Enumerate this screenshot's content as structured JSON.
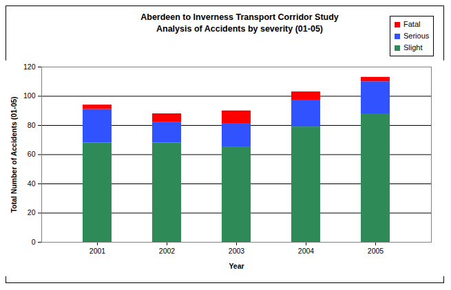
{
  "chart_data": {
    "type": "bar",
    "stacked": true,
    "title": "Aberdeen to Inverness Transport Corridor Study",
    "subtitle": "Analysis of Accidents by severity (01-05)",
    "x_label": "Year",
    "y_label": "Total Number of Accidents (01-05)",
    "categories": [
      "2001",
      "2002",
      "2003",
      "2004",
      "2005"
    ],
    "series": [
      {
        "name": "Slight",
        "color": "#2e8b57",
        "values": [
          68,
          68,
          65,
          79,
          88
        ]
      },
      {
        "name": "Serious",
        "color": "#3152ff",
        "values": [
          23,
          14,
          16,
          18,
          22
        ]
      },
      {
        "name": "Fatal",
        "color": "#ff0000",
        "values": [
          3,
          6,
          9,
          6,
          3
        ]
      }
    ],
    "ylim": [
      0,
      120
    ],
    "yticks": [
      0,
      20,
      40,
      60,
      80,
      100,
      120
    ],
    "grid": true,
    "legend": "top-right"
  }
}
